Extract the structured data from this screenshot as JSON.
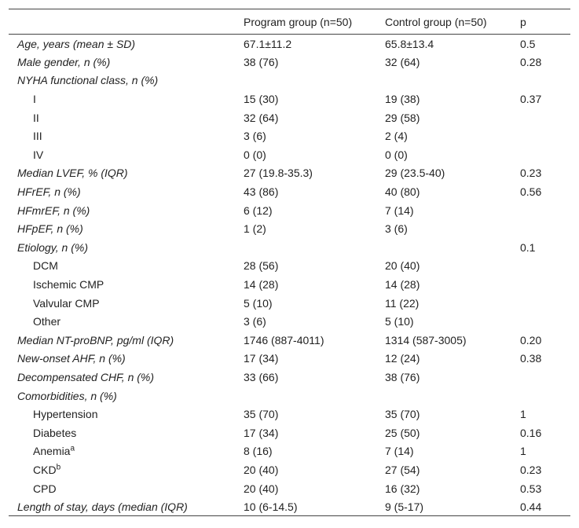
{
  "table": {
    "header": {
      "program": "Program group (n=50)",
      "control": "Control group (n=50)",
      "p": "p"
    },
    "rows": [
      {
        "label": "Age, years (mean ± SD)",
        "program": "67.1±11.2",
        "control": "65.8±13.4",
        "p": "0.5"
      },
      {
        "label": "Male gender, n (%)",
        "program": "38 (76)",
        "control": "32 (64)",
        "p": "0.28"
      },
      {
        "label": "NYHA functional class, n (%)",
        "items": [
          {
            "label": "I",
            "program": "15 (30)",
            "control": "19 (38)",
            "p": "0.37"
          },
          {
            "label": "II",
            "program": "32 (64)",
            "control": "29 (58)"
          },
          {
            "label": "III",
            "program": "3 (6)",
            "control": "2 (4)"
          },
          {
            "label": "IV",
            "program": "0 (0)",
            "control": "0 (0)"
          }
        ]
      },
      {
        "label": "Median LVEF, % (IQR)",
        "program": "27 (19.8-35.3)",
        "control": "29 (23.5-40)",
        "p": "0.23"
      },
      {
        "label": "HFrEF, n (%)",
        "program": "43 (86)",
        "control": "40 (80)",
        "p": "0.56"
      },
      {
        "label": "HFmrEF, n (%)",
        "program": "6 (12)",
        "control": "7 (14)"
      },
      {
        "label": "HFpEF, n (%)",
        "program": "1 (2)",
        "control": "3 (6)"
      },
      {
        "label": "Etiology, n (%)",
        "p": "0.1",
        "items": [
          {
            "label": "DCM",
            "program": "28 (56)",
            "control": "20 (40)"
          },
          {
            "label": "Ischemic CMP",
            "program": "14 (28)",
            "control": "14 (28)"
          },
          {
            "label": "Valvular CMP",
            "program": "5 (10)",
            "control": "11 (22)"
          },
          {
            "label": "Other",
            "program": "3 (6)",
            "control": "5 (10)"
          }
        ]
      },
      {
        "label": "Median NT-proBNP, pg/ml (IQR)",
        "program": "1746 (887-4011)",
        "control": "1314 (587-3005)",
        "p": "0.20"
      },
      {
        "label": "New-onset AHF, n (%)",
        "program": "17 (34)",
        "control": "12 (24)",
        "p": "0.38"
      },
      {
        "label": "Decompensated CHF, n (%)",
        "program": "33 (66)",
        "control": "38 (76)"
      },
      {
        "label": "Comorbidities, n (%)",
        "items": [
          {
            "label": "Hypertension",
            "program": "35 (70)",
            "control": "35 (70)",
            "p": "1"
          },
          {
            "label": "Diabetes",
            "program": "17 (34)",
            "control": "25 (50)",
            "p": "0.16"
          },
          {
            "label": "Anemia",
            "note": "a",
            "program": "8 (16)",
            "control": "7 (14)",
            "p": "1"
          },
          {
            "label": "CKD",
            "note": "b",
            "program": "20 (40)",
            "control": "27 (54)",
            "p": "0.23"
          },
          {
            "label": "CPD",
            "program": "20 (40)",
            "control": "16 (32)",
            "p": "0.53"
          }
        ]
      },
      {
        "label": "Length of stay, days (median (IQR)",
        "program": "10 (6-14.5)",
        "control": "9 (5-17)",
        "p": "0.44"
      }
    ]
  }
}
